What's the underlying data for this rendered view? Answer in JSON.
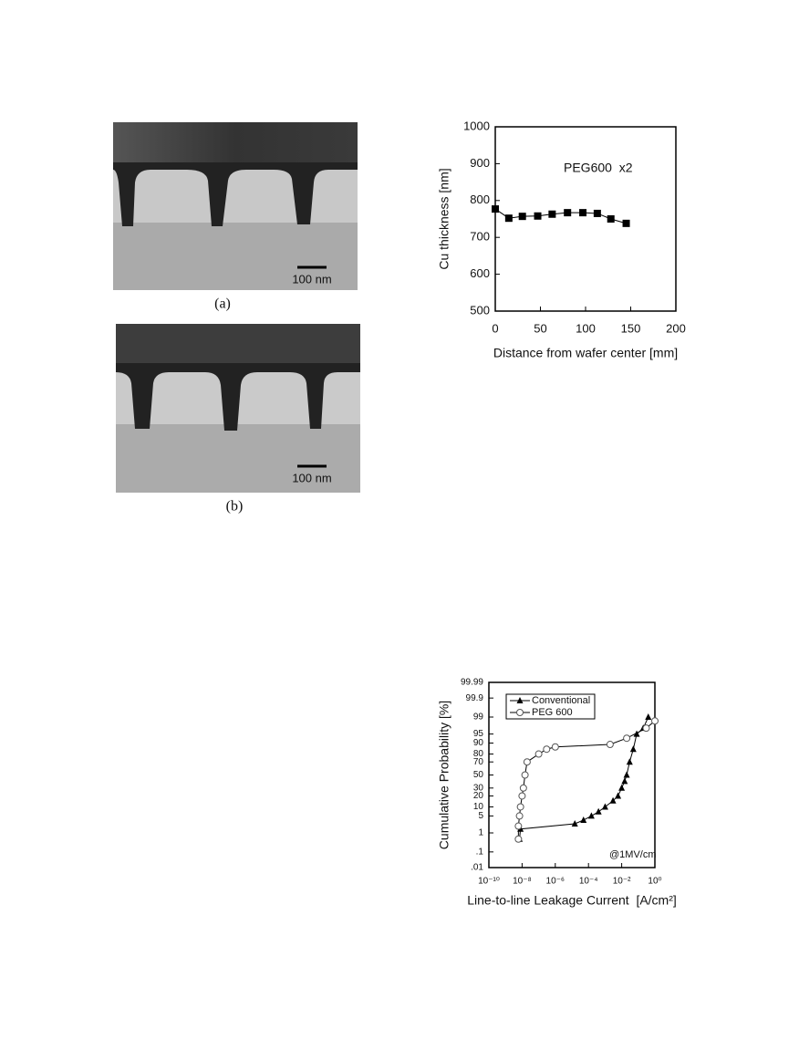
{
  "figures": [
    {
      "caption": "(a)",
      "scale_label": "100 nm"
    },
    {
      "caption": "(b)",
      "scale_label": "100 nm"
    }
  ],
  "chart_data": [
    {
      "type": "line",
      "marker": "square",
      "color": "#000000",
      "xlabel": "Distance from wafer center [mm]",
      "ylabel": "Cu thickness [nm]",
      "annotation": "PEG600  x2",
      "x": [
        0,
        15,
        30,
        47,
        63,
        80,
        97,
        113,
        128,
        145
      ],
      "values": [
        777,
        752,
        757,
        758,
        763,
        767,
        767,
        765,
        750,
        738
      ],
      "xlim": [
        0,
        200
      ],
      "xticks": [
        0,
        50,
        100,
        150,
        200
      ],
      "ylim": [
        500,
        1000
      ],
      "yticks": [
        500,
        600,
        700,
        800,
        900,
        1000
      ]
    },
    {
      "type": "line",
      "xscale": "log",
      "yscale": "probability",
      "legend": "upper left",
      "xlabel": "Line-to-line Leakage Current  [A/cm²]",
      "ylabel": "Cumulative Probability [%]",
      "annotation": "@1MV/cm",
      "series": [
        {
          "name": "Conventional",
          "marker": "triangle",
          "color": "#000000",
          "x": [
            7e-09,
            8e-09,
            1.5e-05,
            5e-05,
            0.00015,
            0.0004,
            0.001,
            0.003,
            0.006,
            0.01,
            0.015,
            0.02,
            0.03,
            0.05,
            0.08,
            0.2,
            0.4
          ],
          "values": [
            0.5,
            1.5,
            2.5,
            3.5,
            5,
            7,
            10,
            15,
            20,
            30,
            40,
            50,
            70,
            85,
            95,
            97,
            99
          ]
        },
        {
          "name": "PEG 600",
          "marker": "circle",
          "color": "#555555",
          "x": [
            6e-09,
            6e-09,
            7e-09,
            8e-09,
            1e-08,
            1.2e-08,
            1.5e-08,
            2e-08,
            1e-07,
            3e-07,
            1e-06,
            0.002,
            0.02,
            0.3,
            1
          ],
          "values": [
            0.5,
            2,
            5,
            10,
            20,
            30,
            50,
            70,
            80,
            85,
            87,
            89,
            93,
            97,
            98.5
          ]
        }
      ],
      "xlim": [
        1e-10,
        1
      ],
      "xticks": [
        {
          "value": 1e-10,
          "label": "10⁻¹⁰"
        },
        {
          "value": 1e-08,
          "label": "10⁻⁸"
        },
        {
          "value": 1e-06,
          "label": "10⁻⁶"
        },
        {
          "value": 0.0001,
          "label": "10⁻⁴"
        },
        {
          "value": 0.01,
          "label": "10⁻²"
        },
        {
          "value": 1,
          "label": "10⁰"
        }
      ],
      "ylim": [
        0.01,
        99.99
      ],
      "yticks": [
        {
          "value": 0.01,
          "label": ".01"
        },
        {
          "value": 0.1,
          "label": ".1"
        },
        1,
        5,
        10,
        20,
        30,
        50,
        70,
        80,
        90,
        95,
        99,
        99.9,
        99.99
      ]
    }
  ]
}
